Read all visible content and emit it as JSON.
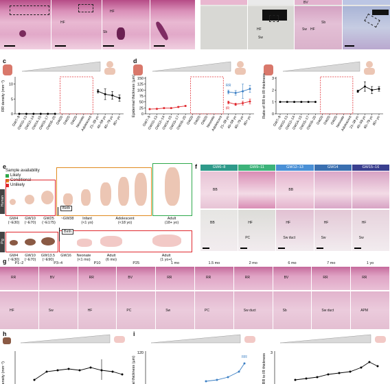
{
  "panels": {
    "c": "c",
    "d": "d",
    "e": "e",
    "f": "f",
    "g": "g",
    "h": "h",
    "i": "i"
  },
  "top_strip": {
    "labels": [
      "HF",
      "HF",
      "Sb",
      "BV",
      "HF",
      "Sw",
      "HF",
      "Sw",
      "Sb"
    ]
  },
  "age_labels_human": [
    "GW7–9",
    "GW10–13",
    "GW12–14",
    "GW14–15",
    "GW15–17",
    "GW16–20",
    "GW20",
    "GW20",
    "GW20",
    "Neonate",
    "Adolescent",
    "21–39 yo",
    "40–59 yo",
    "60–79 yo",
    "80+ yo"
  ],
  "chart_data": [
    {
      "type": "line",
      "panel": "c",
      "ylabel": "RR density (mm⁻²)",
      "ylim": [
        0,
        12
      ],
      "yticks": [
        0,
        5,
        10
      ],
      "categories": [
        "GW7–9",
        "GW10–13",
        "GW12–14",
        "GW14–15",
        "GW15–17",
        "GW16–20",
        "GW20",
        "GW20",
        "GW20",
        "Neonate",
        "Adolescent",
        "21–39 yo",
        "40–59 yo",
        "60–79 yo",
        "80+ yo"
      ],
      "series": [
        {
          "color": "#000000",
          "values": [
            0,
            0,
            0,
            0,
            0,
            0,
            null,
            null,
            null,
            null,
            null,
            7.6,
            6.6,
            6.2,
            5.3
          ],
          "err": [
            0,
            0,
            0,
            0,
            0,
            0,
            null,
            null,
            null,
            null,
            null,
            0.6,
            1.8,
            1.3,
            1.1
          ]
        }
      ],
      "gap_box": [
        6,
        10
      ]
    },
    {
      "type": "line",
      "panel": "d",
      "ylabel": "Epidermal thickness (µm)",
      "ylim": [
        0,
        150
      ],
      "yticks": [
        0,
        25,
        50,
        75,
        100,
        125,
        150
      ],
      "categories": [
        "GW7–9",
        "GW10–13",
        "GW12–14",
        "GW14–15",
        "GW15–17",
        "GW16–20",
        "GW20",
        "GW20",
        "GW20",
        "Neonate",
        "Adolescent",
        "21–39 yo",
        "40–59 yo",
        "60–79 yo",
        "80+ yo"
      ],
      "series": [
        {
          "name": "RR",
          "color": "#3b7fc4",
          "values": [
            null,
            null,
            null,
            null,
            null,
            null,
            null,
            null,
            null,
            null,
            null,
            92,
            88,
            95,
            105
          ],
          "err": [
            null,
            null,
            null,
            null,
            null,
            null,
            null,
            null,
            null,
            null,
            null,
            8,
            10,
            30,
            15
          ]
        },
        {
          "name": "IR",
          "color": "#e0272d",
          "values": [
            20,
            21,
            24,
            24,
            29,
            33,
            null,
            null,
            null,
            null,
            null,
            48,
            40,
            45,
            52
          ],
          "err": [
            1,
            1,
            1,
            1,
            2,
            2,
            null,
            null,
            null,
            null,
            null,
            6,
            5,
            8,
            10
          ]
        }
      ],
      "gap_box": [
        6,
        10
      ]
    },
    {
      "type": "line",
      "panel": "d2",
      "ylabel": "Ratio of RR to IR thickness",
      "ylim": [
        0,
        3
      ],
      "yticks": [
        0,
        1,
        2,
        3
      ],
      "categories": [
        "GW7–9",
        "GW10–13",
        "GW12–14",
        "GW14–15",
        "GW15–17",
        "GW16–20",
        "GW20",
        "GW20",
        "GW20",
        "Neonate",
        "Adolescent",
        "21–39 yo",
        "40–59 yo",
        "60–79 yo",
        "80+ yo"
      ],
      "series": [
        {
          "color": "#000000",
          "values": [
            1,
            1,
            1,
            1,
            1,
            1,
            null,
            null,
            null,
            null,
            null,
            1.9,
            2.3,
            2.0,
            2.1
          ],
          "err": [
            0,
            0,
            0,
            0,
            0,
            0,
            null,
            null,
            null,
            null,
            null,
            0.1,
            0.4,
            0.3,
            0.2
          ]
        }
      ],
      "gap_box": [
        6,
        10
      ]
    }
  ],
  "panel_e": {
    "legend_title": "Sample availability",
    "legend": [
      {
        "label": "Likely",
        "color": "#2da84a"
      },
      {
        "label": "Conditional",
        "color": "#e08a1e"
      },
      {
        "label": "Unlikely",
        "color": "#e0272d"
      }
    ],
    "human_label": "Human",
    "pig_label": "Pig",
    "birth": "Birth",
    "human_stages": [
      {
        "l1": "GW4",
        "l2": "(~E30)"
      },
      {
        "l1": "GW10",
        "l2": "(~E70)"
      },
      {
        "l1": "GW25",
        "l2": "(~E175)"
      },
      {
        "l1": "Infant",
        "l2": "(<1 yo)"
      },
      {
        "l1": "Adolescent",
        "l2": "(<18 yo)"
      },
      {
        "l1": "Adult",
        "l2": "(18+ yo)"
      }
    ],
    "human_birth_label": "~GW38",
    "pig_stages": [
      {
        "l1": "GW4",
        "l2": "(~E30)"
      },
      {
        "l1": "GW10",
        "l2": "(~E70)"
      },
      {
        "l1": "GW13.5",
        "l2": "(~E90)"
      },
      {
        "l1": "Neonate",
        "l2": "(<1 mo)"
      },
      {
        "l1": "Adult",
        "l2": "(6 mo)"
      },
      {
        "l1": "Adult",
        "l2": "(1 yo+)"
      }
    ],
    "pig_birth_label": "GW16"
  },
  "panel_f": {
    "headers": [
      "GW6–8",
      "GW9–11",
      "GW12–13",
      "GW14",
      "GW15–16"
    ],
    "header_colors": [
      "#2e9a8a",
      "#3db37a",
      "#4a90d6",
      "#3a6fb0",
      "#3a3f8f"
    ],
    "row1_labels": [
      "BB",
      "",
      "BB",
      "",
      ""
    ],
    "row2_labels": [
      "BB",
      "HF",
      "HF",
      "HF",
      "HF"
    ],
    "row2_extra": [
      "",
      "PC",
      "Sw duct",
      "Sw",
      "Sw"
    ]
  },
  "panel_g": {
    "headers": [
      "P1–2",
      "P3–4",
      "P10",
      "P25",
      "1 mo",
      "1.5 mo",
      "2 mo",
      "6 mo",
      "7 mo",
      "1 yo"
    ],
    "row1_tags": [
      "RR",
      "BV",
      "RR",
      "BV",
      "RR",
      "RR",
      "RR",
      "BV",
      "RR",
      "RR"
    ],
    "row2_tags": [
      "HF",
      "Sw",
      "HF",
      "PC",
      "Sw",
      "PC",
      "Sw duct",
      "Sb",
      "Sw duct",
      "APM"
    ]
  },
  "panel_h": {
    "ylabel": "RR density (mm⁻²)"
  },
  "panel_i": {
    "ylabel": "Epidermal thickness (µm)",
    "ylabel2": "Ratio of RR to IR thickness",
    "rr_label": "RR",
    "ytick_120": "120",
    "ytick_3": "3"
  }
}
